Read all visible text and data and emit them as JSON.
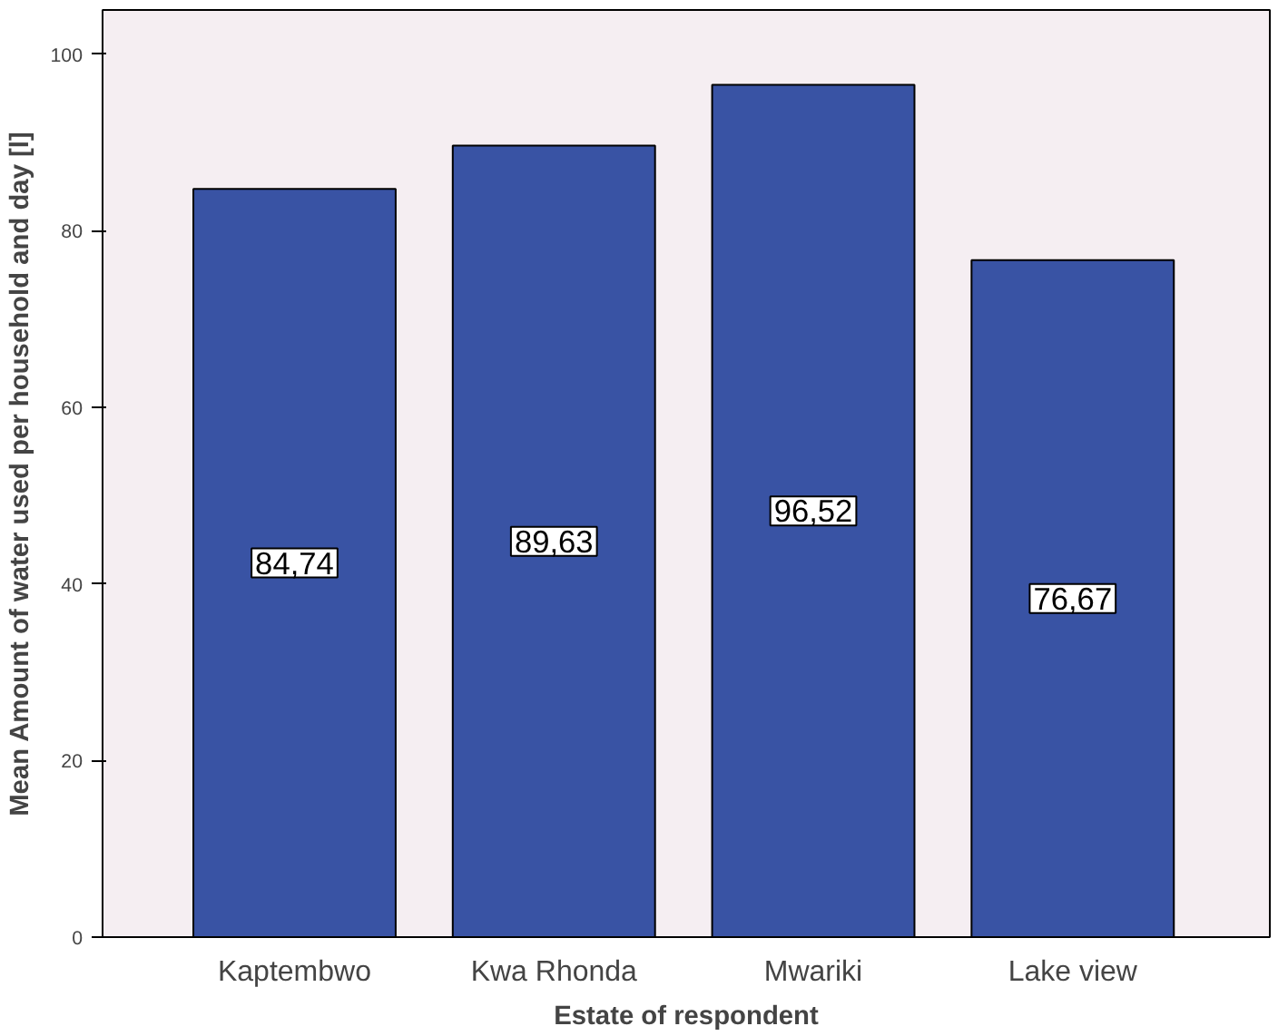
{
  "chart_data": {
    "type": "bar",
    "xlabel": "Estate of respondent",
    "ylabel": "Mean Amount of water used per household and day [l]",
    "categories": [
      "Kaptembwo",
      "Kwa Rhonda",
      "Mwariki",
      "Lake view"
    ],
    "values": [
      84.74,
      89.63,
      96.52,
      76.67
    ],
    "value_labels": [
      "84,74",
      "89,63",
      "96,52",
      "76,67"
    ],
    "color": "#3953a4",
    "ylim": [
      0,
      105
    ],
    "yticks": [
      0,
      20,
      40,
      60,
      80,
      100
    ],
    "grid": false
  }
}
